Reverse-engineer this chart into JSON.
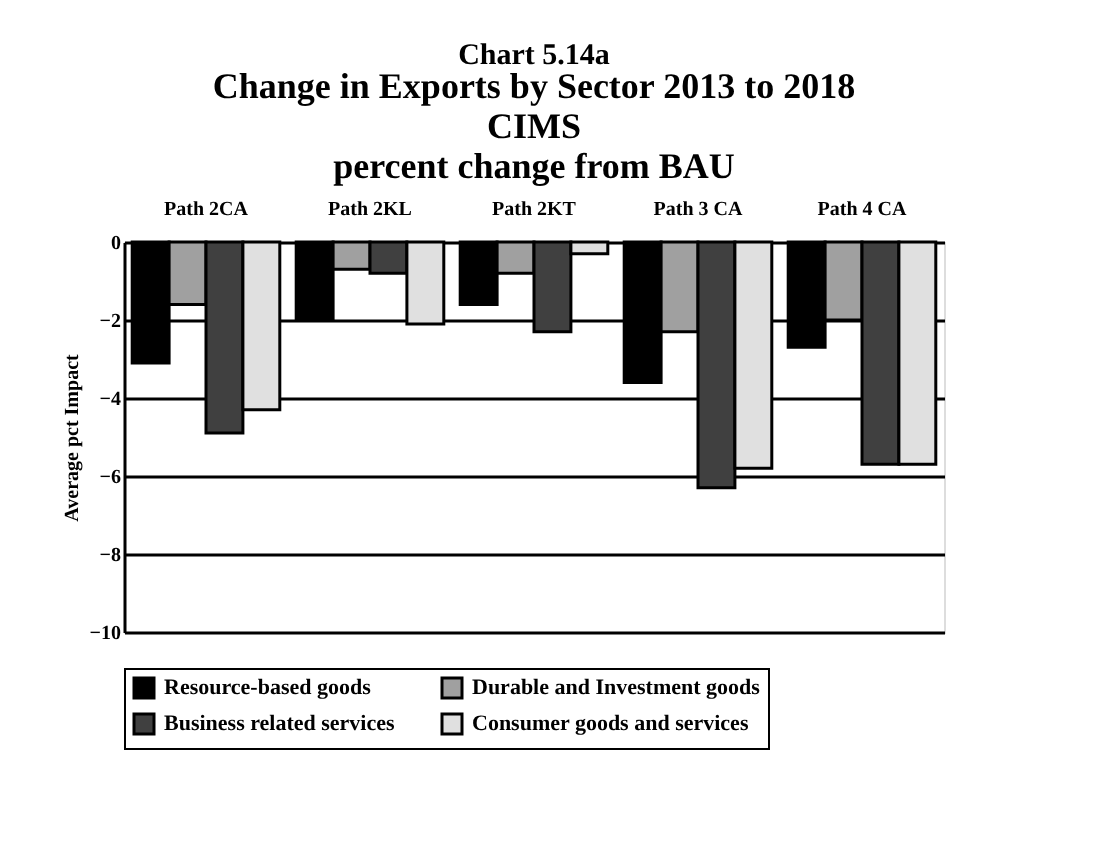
{
  "chart_data": {
    "type": "bar",
    "title": "Chart 5.14a",
    "subtitle": [
      "Change in Exports by Sector 2013 to 2018",
      "CIMS",
      "percent change from BAU"
    ],
    "ylabel": "Average pct Impact",
    "categories": [
      "Path 2CA",
      "Path 2KL",
      "Path 2KT",
      "Path 3 CA",
      "Path 4 CA"
    ],
    "series": [
      {
        "name": "Resource-based goods",
        "color": "#000000",
        "values": [
          -3.1,
          -2.0,
          -1.6,
          -3.6,
          -2.7
        ]
      },
      {
        "name": "Durable and Investment goods",
        "color": "#a0a0a0",
        "values": [
          -1.6,
          -0.7,
          -0.8,
          -2.3,
          -2.0
        ]
      },
      {
        "name": "Business related services",
        "color": "#404040",
        "values": [
          -4.9,
          -0.8,
          -2.3,
          -6.3,
          -5.7
        ]
      },
      {
        "name": "Consumer goods and services",
        "color": "#e0e0e0",
        "values": [
          -4.3,
          -2.1,
          -0.3,
          -5.8,
          -5.7
        ]
      }
    ],
    "ylim": [
      -10,
      0
    ],
    "yticks": [
      -10,
      -8,
      -6,
      -4,
      -2,
      0
    ],
    "grid": "y",
    "legend": "bottom"
  }
}
